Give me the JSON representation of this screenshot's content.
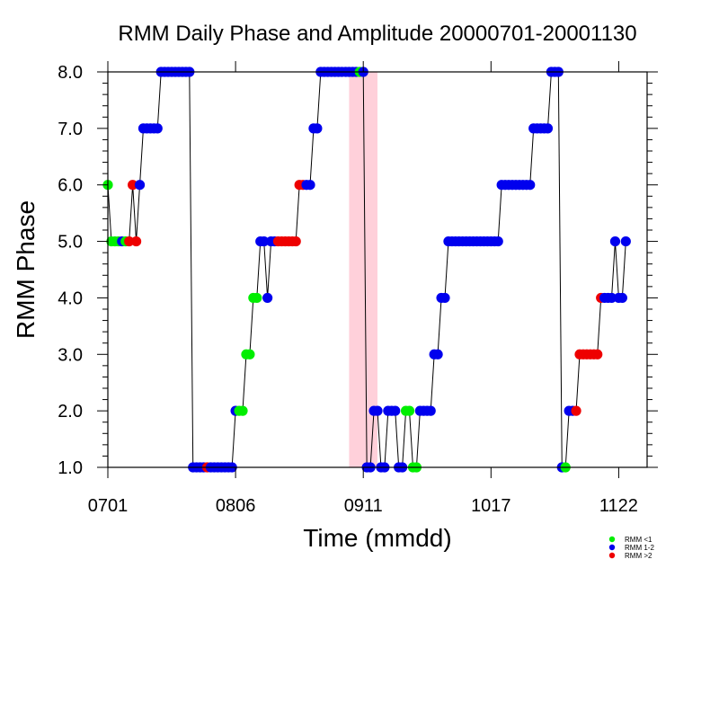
{
  "chart_data": {
    "type": "scatter",
    "title": "RMM Daily Phase and Amplitude 20000701-20001130",
    "xlabel": "Time (mmdd)",
    "ylabel": "RMM Phase",
    "x_tick_labels": [
      "0701",
      "0806",
      "0911",
      "1017",
      "1122"
    ],
    "x_tick_days": [
      0,
      36,
      72,
      108,
      144
    ],
    "xlim": [
      0,
      152
    ],
    "ylim": [
      1,
      8
    ],
    "y_tick_labels": [
      "1.0",
      "2.0",
      "3.0",
      "4.0",
      "5.0",
      "6.0",
      "7.0",
      "8.0"
    ],
    "y_ticks": [
      1,
      2,
      3,
      4,
      5,
      6,
      7,
      8
    ],
    "highlight_span": {
      "from_day": 68,
      "to_day": 76,
      "color": "#ffd0da"
    },
    "colors": {
      "RMM <1": "#00ee00",
      "RMM 1-2": "#0000ee",
      "RMM >2": "#ee0000"
    },
    "legend": {
      "placement": "bottom-right",
      "entries": [
        {
          "label": "RMM <1",
          "color": "#00ee00"
        },
        {
          "label": "RMM 1-2",
          "color": "#0000ee"
        },
        {
          "label": "RMM >2",
          "color": "#ee0000"
        }
      ]
    },
    "series": [
      {
        "name": "RMM Phase",
        "points": [
          {
            "x": 0,
            "y": 6,
            "c": "g"
          },
          {
            "x": 1,
            "y": 5,
            "c": "g"
          },
          {
            "x": 2,
            "y": 5,
            "c": "g"
          },
          {
            "x": 3,
            "y": 5,
            "c": "g"
          },
          {
            "x": 4,
            "y": 5,
            "c": "b"
          },
          {
            "x": 5,
            "y": 5,
            "c": "g"
          },
          {
            "x": 6,
            "y": 5,
            "c": "r"
          },
          {
            "x": 7,
            "y": 6,
            "c": "r"
          },
          {
            "x": 8,
            "y": 5,
            "c": "r"
          },
          {
            "x": 9,
            "y": 6,
            "c": "b"
          },
          {
            "x": 10,
            "y": 7,
            "c": "b"
          },
          {
            "x": 11,
            "y": 7,
            "c": "b"
          },
          {
            "x": 12,
            "y": 7,
            "c": "b"
          },
          {
            "x": 13,
            "y": 7,
            "c": "b"
          },
          {
            "x": 14,
            "y": 7,
            "c": "b"
          },
          {
            "x": 15,
            "y": 8,
            "c": "b"
          },
          {
            "x": 16,
            "y": 8,
            "c": "b"
          },
          {
            "x": 17,
            "y": 8,
            "c": "b"
          },
          {
            "x": 18,
            "y": 8,
            "c": "b"
          },
          {
            "x": 19,
            "y": 8,
            "c": "b"
          },
          {
            "x": 20,
            "y": 8,
            "c": "b"
          },
          {
            "x": 21,
            "y": 8,
            "c": "b"
          },
          {
            "x": 22,
            "y": 8,
            "c": "b"
          },
          {
            "x": 23,
            "y": 8,
            "c": "b"
          },
          {
            "x": 24,
            "y": 1,
            "c": "b"
          },
          {
            "x": 25,
            "y": 1,
            "c": "b"
          },
          {
            "x": 26,
            "y": 1,
            "c": "b"
          },
          {
            "x": 27,
            "y": 1,
            "c": "b"
          },
          {
            "x": 28,
            "y": 1,
            "c": "r"
          },
          {
            "x": 29,
            "y": 1,
            "c": "b"
          },
          {
            "x": 30,
            "y": 1,
            "c": "b"
          },
          {
            "x": 31,
            "y": 1,
            "c": "b"
          },
          {
            "x": 32,
            "y": 1,
            "c": "b"
          },
          {
            "x": 33,
            "y": 1,
            "c": "b"
          },
          {
            "x": 34,
            "y": 1,
            "c": "b"
          },
          {
            "x": 35,
            "y": 1,
            "c": "b"
          },
          {
            "x": 36,
            "y": 2,
            "c": "b"
          },
          {
            "x": 37,
            "y": 2,
            "c": "g"
          },
          {
            "x": 38,
            "y": 2,
            "c": "g"
          },
          {
            "x": 39,
            "y": 3,
            "c": "g"
          },
          {
            "x": 40,
            "y": 3,
            "c": "g"
          },
          {
            "x": 41,
            "y": 4,
            "c": "g"
          },
          {
            "x": 42,
            "y": 4,
            "c": "g"
          },
          {
            "x": 43,
            "y": 5,
            "c": "b"
          },
          {
            "x": 44,
            "y": 5,
            "c": "b"
          },
          {
            "x": 45,
            "y": 4,
            "c": "b"
          },
          {
            "x": 46,
            "y": 5,
            "c": "b"
          },
          {
            "x": 47,
            "y": 5,
            "c": "b"
          },
          {
            "x": 48,
            "y": 5,
            "c": "r"
          },
          {
            "x": 49,
            "y": 5,
            "c": "r"
          },
          {
            "x": 50,
            "y": 5,
            "c": "r"
          },
          {
            "x": 51,
            "y": 5,
            "c": "r"
          },
          {
            "x": 52,
            "y": 5,
            "c": "r"
          },
          {
            "x": 53,
            "y": 5,
            "c": "r"
          },
          {
            "x": 54,
            "y": 6,
            "c": "r"
          },
          {
            "x": 55,
            "y": 6,
            "c": "r"
          },
          {
            "x": 56,
            "y": 6,
            "c": "b"
          },
          {
            "x": 57,
            "y": 6,
            "c": "b"
          },
          {
            "x": 58,
            "y": 7,
            "c": "b"
          },
          {
            "x": 59,
            "y": 7,
            "c": "b"
          },
          {
            "x": 60,
            "y": 8,
            "c": "b"
          },
          {
            "x": 61,
            "y": 8,
            "c": "b"
          },
          {
            "x": 62,
            "y": 8,
            "c": "b"
          },
          {
            "x": 63,
            "y": 8,
            "c": "b"
          },
          {
            "x": 64,
            "y": 8,
            "c": "b"
          },
          {
            "x": 65,
            "y": 8,
            "c": "b"
          },
          {
            "x": 66,
            "y": 8,
            "c": "b"
          },
          {
            "x": 67,
            "y": 8,
            "c": "b"
          },
          {
            "x": 68,
            "y": 8,
            "c": "b"
          },
          {
            "x": 69,
            "y": 8,
            "c": "b"
          },
          {
            "x": 70,
            "y": 8,
            "c": "b"
          },
          {
            "x": 71,
            "y": 8,
            "c": "g"
          },
          {
            "x": 72,
            "y": 8,
            "c": "b"
          },
          {
            "x": 73,
            "y": 1,
            "c": "b"
          },
          {
            "x": 74,
            "y": 1,
            "c": "b"
          },
          {
            "x": 75,
            "y": 2,
            "c": "b"
          },
          {
            "x": 76,
            "y": 2,
            "c": "b"
          },
          {
            "x": 77,
            "y": 1,
            "c": "b"
          },
          {
            "x": 78,
            "y": 1,
            "c": "b"
          },
          {
            "x": 79,
            "y": 2,
            "c": "b"
          },
          {
            "x": 80,
            "y": 2,
            "c": "b"
          },
          {
            "x": 81,
            "y": 2,
            "c": "b"
          },
          {
            "x": 82,
            "y": 1,
            "c": "b"
          },
          {
            "x": 83,
            "y": 1,
            "c": "b"
          },
          {
            "x": 84,
            "y": 2,
            "c": "g"
          },
          {
            "x": 85,
            "y": 2,
            "c": "g"
          },
          {
            "x": 86,
            "y": 1,
            "c": "g"
          },
          {
            "x": 87,
            "y": 1,
            "c": "g"
          },
          {
            "x": 88,
            "y": 2,
            "c": "b"
          },
          {
            "x": 89,
            "y": 2,
            "c": "b"
          },
          {
            "x": 90,
            "y": 2,
            "c": "b"
          },
          {
            "x": 91,
            "y": 2,
            "c": "b"
          },
          {
            "x": 92,
            "y": 3,
            "c": "b"
          },
          {
            "x": 93,
            "y": 3,
            "c": "b"
          },
          {
            "x": 94,
            "y": 4,
            "c": "b"
          },
          {
            "x": 95,
            "y": 4,
            "c": "b"
          },
          {
            "x": 96,
            "y": 5,
            "c": "b"
          },
          {
            "x": 97,
            "y": 5,
            "c": "b"
          },
          {
            "x": 98,
            "y": 5,
            "c": "b"
          },
          {
            "x": 99,
            "y": 5,
            "c": "b"
          },
          {
            "x": 100,
            "y": 5,
            "c": "b"
          },
          {
            "x": 101,
            "y": 5,
            "c": "b"
          },
          {
            "x": 102,
            "y": 5,
            "c": "b"
          },
          {
            "x": 103,
            "y": 5,
            "c": "b"
          },
          {
            "x": 104,
            "y": 5,
            "c": "b"
          },
          {
            "x": 105,
            "y": 5,
            "c": "b"
          },
          {
            "x": 106,
            "y": 5,
            "c": "b"
          },
          {
            "x": 107,
            "y": 5,
            "c": "b"
          },
          {
            "x": 108,
            "y": 5,
            "c": "b"
          },
          {
            "x": 109,
            "y": 5,
            "c": "b"
          },
          {
            "x": 110,
            "y": 5,
            "c": "b"
          },
          {
            "x": 111,
            "y": 6,
            "c": "b"
          },
          {
            "x": 112,
            "y": 6,
            "c": "b"
          },
          {
            "x": 113,
            "y": 6,
            "c": "b"
          },
          {
            "x": 114,
            "y": 6,
            "c": "b"
          },
          {
            "x": 115,
            "y": 6,
            "c": "b"
          },
          {
            "x": 116,
            "y": 6,
            "c": "b"
          },
          {
            "x": 117,
            "y": 6,
            "c": "b"
          },
          {
            "x": 118,
            "y": 6,
            "c": "b"
          },
          {
            "x": 119,
            "y": 6,
            "c": "b"
          },
          {
            "x": 120,
            "y": 7,
            "c": "b"
          },
          {
            "x": 121,
            "y": 7,
            "c": "b"
          },
          {
            "x": 122,
            "y": 7,
            "c": "b"
          },
          {
            "x": 123,
            "y": 7,
            "c": "b"
          },
          {
            "x": 124,
            "y": 7,
            "c": "b"
          },
          {
            "x": 125,
            "y": 8,
            "c": "b"
          },
          {
            "x": 126,
            "y": 8,
            "c": "b"
          },
          {
            "x": 127,
            "y": 8,
            "c": "b"
          },
          {
            "x": 128,
            "y": 1,
            "c": "b"
          },
          {
            "x": 129,
            "y": 1,
            "c": "g"
          },
          {
            "x": 130,
            "y": 2,
            "c": "b"
          },
          {
            "x": 131,
            "y": 2,
            "c": "b"
          },
          {
            "x": 132,
            "y": 2,
            "c": "r"
          },
          {
            "x": 133,
            "y": 3,
            "c": "r"
          },
          {
            "x": 134,
            "y": 3,
            "c": "r"
          },
          {
            "x": 135,
            "y": 3,
            "c": "r"
          },
          {
            "x": 136,
            "y": 3,
            "c": "r"
          },
          {
            "x": 137,
            "y": 3,
            "c": "r"
          },
          {
            "x": 138,
            "y": 3,
            "c": "r"
          },
          {
            "x": 139,
            "y": 4,
            "c": "r"
          },
          {
            "x": 140,
            "y": 4,
            "c": "b"
          },
          {
            "x": 141,
            "y": 4,
            "c": "b"
          },
          {
            "x": 142,
            "y": 4,
            "c": "b"
          },
          {
            "x": 143,
            "y": 5,
            "c": "b"
          },
          {
            "x": 144,
            "y": 4,
            "c": "b"
          },
          {
            "x": 145,
            "y": 4,
            "c": "b"
          },
          {
            "x": 146,
            "y": 5,
            "c": "b"
          }
        ]
      }
    ]
  }
}
